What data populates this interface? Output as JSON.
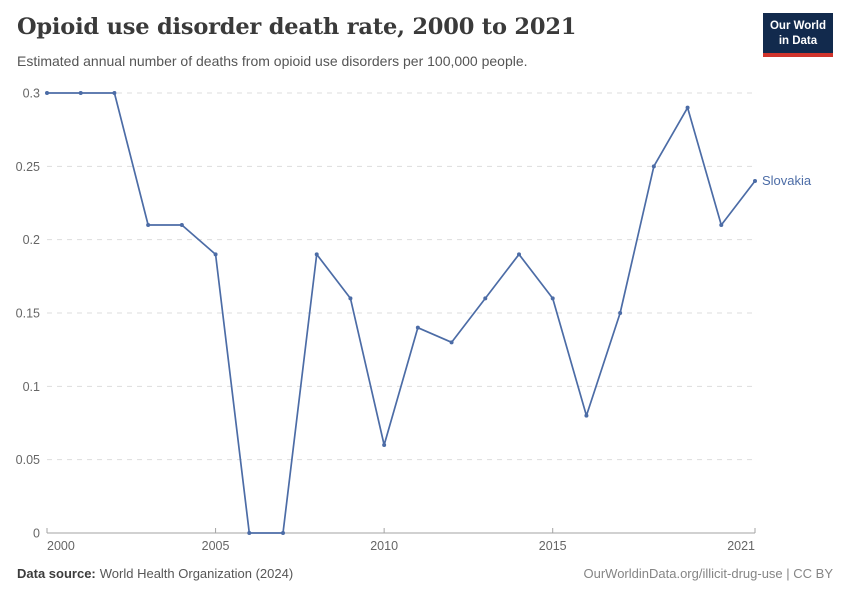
{
  "header": {
    "title": "Opioid use disorder death rate, 2000 to 2021",
    "subtitle": "Estimated annual number of deaths from opioid use disorders per 100,000 people."
  },
  "logo": {
    "line1": "Our World",
    "line2": "in Data"
  },
  "chart_data": {
    "type": "line",
    "title": "Opioid use disorder death rate, 2000 to 2021",
    "x": [
      2000,
      2001,
      2002,
      2003,
      2004,
      2005,
      2006,
      2007,
      2008,
      2009,
      2010,
      2011,
      2012,
      2013,
      2014,
      2015,
      2016,
      2017,
      2018,
      2019,
      2020,
      2021
    ],
    "series": [
      {
        "name": "Slovakia",
        "color": "#4c6ca6",
        "values": [
          0.3,
          0.3,
          0.3,
          0.21,
          0.21,
          0.19,
          0,
          0,
          0.19,
          0.16,
          0.06,
          0.14,
          0.13,
          0.16,
          0.19,
          0.16,
          0.08,
          0.15,
          0.25,
          0.29,
          0.21,
          0.24
        ]
      }
    ],
    "xlabel": "",
    "ylabel": "",
    "xlim": [
      2000,
      2021
    ],
    "ylim": [
      0,
      0.3
    ],
    "xticks": [
      2000,
      2005,
      2010,
      2015,
      2021
    ],
    "yticks": [
      0,
      0.05,
      0.1,
      0.15,
      0.2,
      0.25,
      0.3
    ],
    "ytick_labels": [
      "0",
      "0.05",
      "0.1",
      "0.15",
      "0.2",
      "0.25",
      "0.3"
    ],
    "grid": "horizontal-dashed",
    "legend_position": "line-end-label"
  },
  "footer": {
    "source_label": "Data source:",
    "source_value": "World Health Organization (2024)",
    "credit": "OurWorldinData.org/illicit-drug-use | CC BY"
  },
  "colors": {
    "line": "#4c6ca6",
    "logo_bg": "#122a4d",
    "logo_accent": "#d0342c",
    "grid": "#dddddd",
    "axis": "#a3a3a3",
    "title_text": "#3a3a3a",
    "subtitle_text": "#555555",
    "tick_text": "#666666",
    "source_label_text": "#3c3c3c",
    "source_text": "#575757",
    "credit_text": "#858585"
  }
}
